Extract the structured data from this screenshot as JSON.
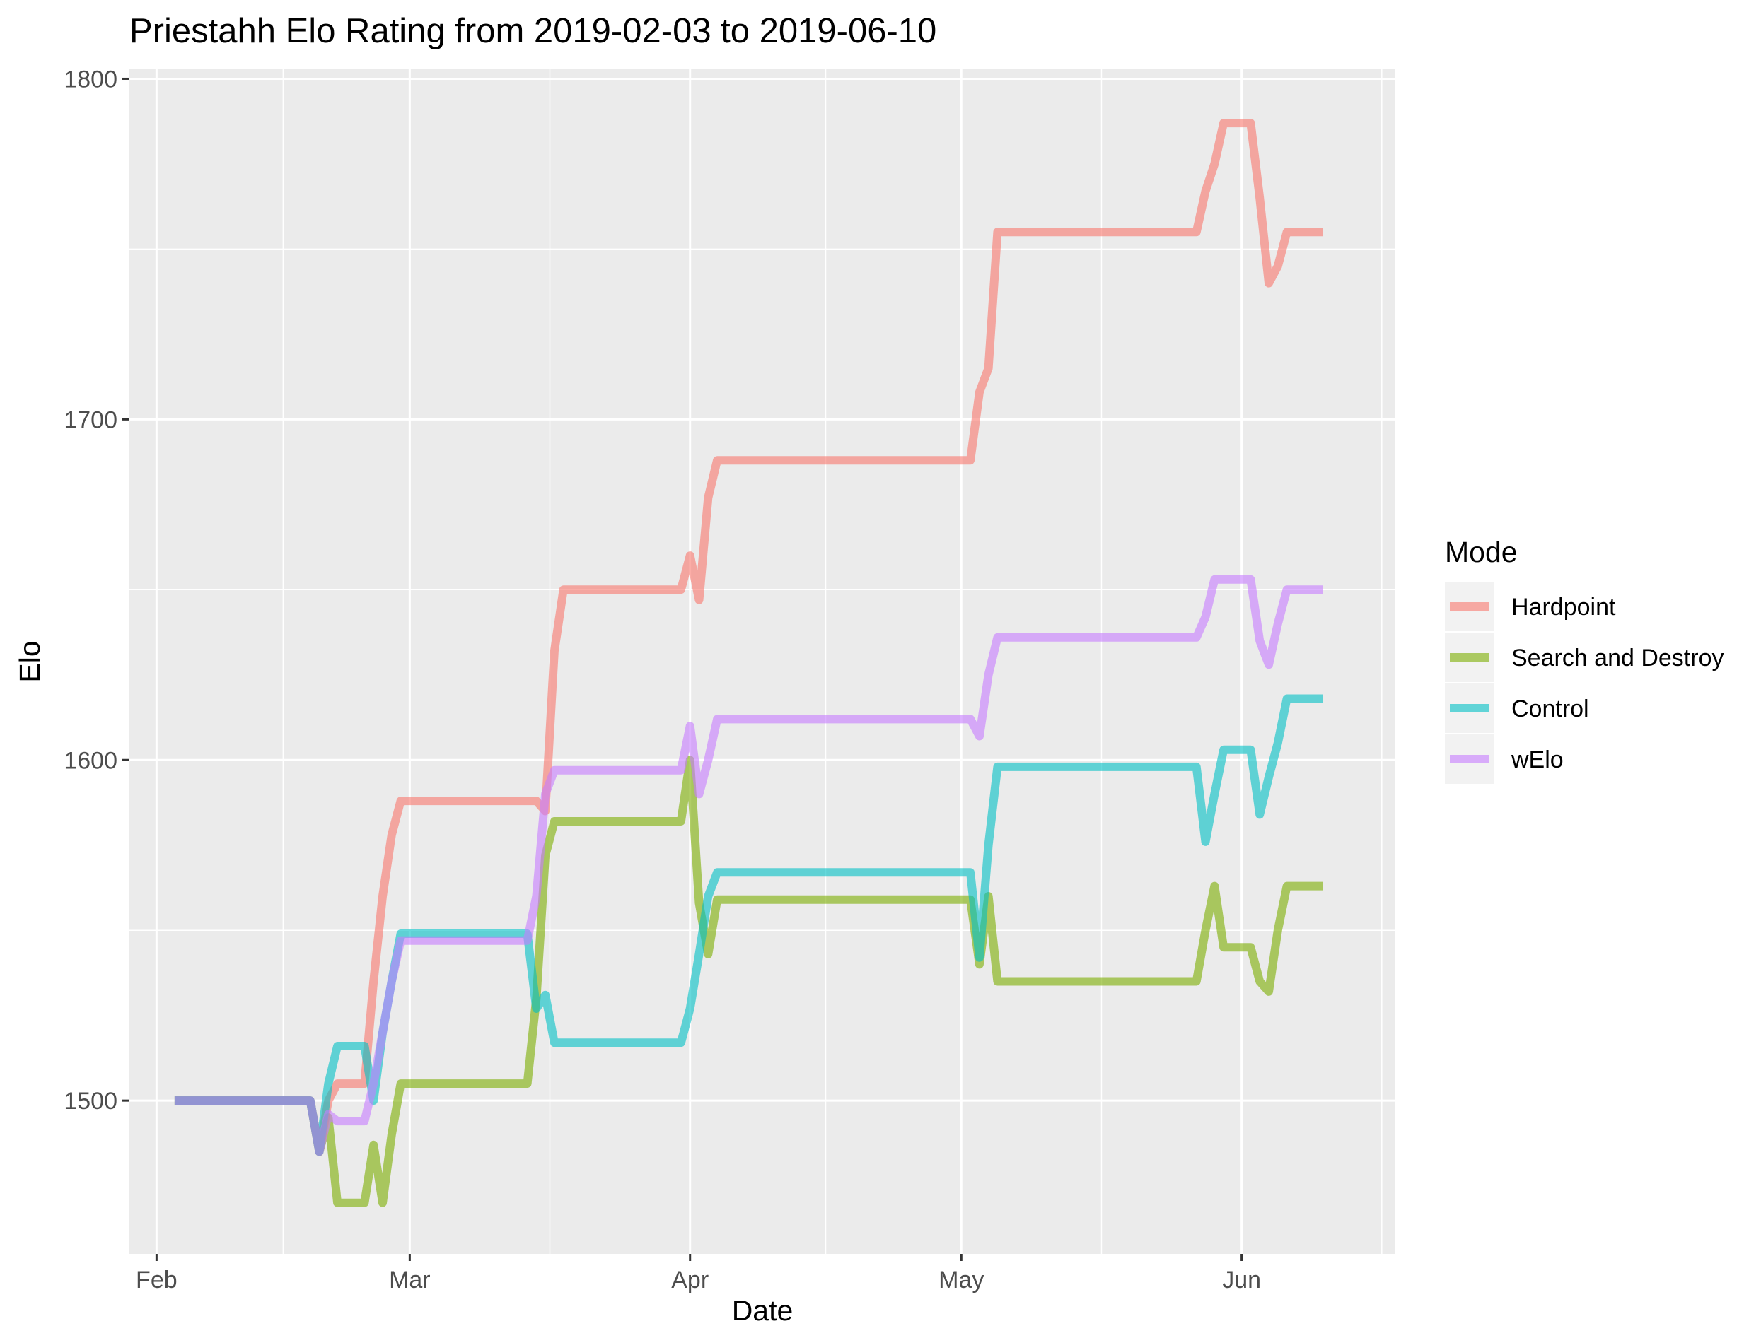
{
  "chart_data": {
    "type": "line",
    "title": "Priestahh Elo Rating from 2019-02-03 to 2019-06-10",
    "xlabel": "Date",
    "ylabel": "Elo",
    "xlim": [
      "2019-01-29",
      "2019-06-18"
    ],
    "ylim": [
      1455,
      1803
    ],
    "x_ticks": [
      {
        "date": "2019-02-01",
        "label": "Feb"
      },
      {
        "date": "2019-03-01",
        "label": "Mar"
      },
      {
        "date": "2019-04-01",
        "label": "Apr"
      },
      {
        "date": "2019-05-01",
        "label": "May"
      },
      {
        "date": "2019-06-01",
        "label": "Jun"
      }
    ],
    "y_ticks": [
      1500,
      1600,
      1700,
      1800
    ],
    "grid": true,
    "legend": {
      "title": "Mode",
      "position": "right"
    },
    "series": [
      {
        "name": "Hardpoint",
        "color": "#F8766D",
        "points": [
          [
            "2019-02-03",
            1500
          ],
          [
            "2019-02-18",
            1500
          ],
          [
            "2019-02-19",
            1485
          ],
          [
            "2019-02-20",
            1500
          ],
          [
            "2019-02-21",
            1505
          ],
          [
            "2019-02-24",
            1505
          ],
          [
            "2019-02-25",
            1535
          ],
          [
            "2019-02-26",
            1560
          ],
          [
            "2019-02-27",
            1578
          ],
          [
            "2019-02-28",
            1588
          ],
          [
            "2019-03-15",
            1588
          ],
          [
            "2019-03-16",
            1585
          ],
          [
            "2019-03-17",
            1632
          ],
          [
            "2019-03-18",
            1650
          ],
          [
            "2019-03-31",
            1650
          ],
          [
            "2019-04-01",
            1660
          ],
          [
            "2019-04-02",
            1647
          ],
          [
            "2019-04-03",
            1677
          ],
          [
            "2019-04-04",
            1688
          ],
          [
            "2019-05-02",
            1688
          ],
          [
            "2019-05-03",
            1708
          ],
          [
            "2019-05-04",
            1715
          ],
          [
            "2019-05-05",
            1755
          ],
          [
            "2019-05-27",
            1755
          ],
          [
            "2019-05-28",
            1767
          ],
          [
            "2019-05-29",
            1775
          ],
          [
            "2019-05-30",
            1787
          ],
          [
            "2019-06-02",
            1787
          ],
          [
            "2019-06-03",
            1765
          ],
          [
            "2019-06-04",
            1740
          ],
          [
            "2019-06-05",
            1745
          ],
          [
            "2019-06-06",
            1755
          ],
          [
            "2019-06-10",
            1755
          ]
        ]
      },
      {
        "name": "Search and Destroy",
        "color": "#7CAE00",
        "points": [
          [
            "2019-02-03",
            1500
          ],
          [
            "2019-02-18",
            1500
          ],
          [
            "2019-02-19",
            1485
          ],
          [
            "2019-02-20",
            1495
          ],
          [
            "2019-02-21",
            1470
          ],
          [
            "2019-02-24",
            1470
          ],
          [
            "2019-02-25",
            1487
          ],
          [
            "2019-02-26",
            1470
          ],
          [
            "2019-02-27",
            1490
          ],
          [
            "2019-02-28",
            1505
          ],
          [
            "2019-03-14",
            1505
          ],
          [
            "2019-03-15",
            1530
          ],
          [
            "2019-03-16",
            1572
          ],
          [
            "2019-03-17",
            1582
          ],
          [
            "2019-03-31",
            1582
          ],
          [
            "2019-04-01",
            1600
          ],
          [
            "2019-04-02",
            1558
          ],
          [
            "2019-04-03",
            1543
          ],
          [
            "2019-04-04",
            1559
          ],
          [
            "2019-05-02",
            1559
          ],
          [
            "2019-05-03",
            1540
          ],
          [
            "2019-05-04",
            1560
          ],
          [
            "2019-05-05",
            1535
          ],
          [
            "2019-05-27",
            1535
          ],
          [
            "2019-05-28",
            1550
          ],
          [
            "2019-05-29",
            1563
          ],
          [
            "2019-05-30",
            1545
          ],
          [
            "2019-06-02",
            1545
          ],
          [
            "2019-06-03",
            1535
          ],
          [
            "2019-06-04",
            1532
          ],
          [
            "2019-06-05",
            1550
          ],
          [
            "2019-06-06",
            1563
          ],
          [
            "2019-06-10",
            1563
          ]
        ]
      },
      {
        "name": "Control",
        "color": "#00BFC4",
        "points": [
          [
            "2019-02-03",
            1500
          ],
          [
            "2019-02-18",
            1500
          ],
          [
            "2019-02-19",
            1485
          ],
          [
            "2019-02-20",
            1505
          ],
          [
            "2019-02-21",
            1516
          ],
          [
            "2019-02-24",
            1516
          ],
          [
            "2019-02-25",
            1500
          ],
          [
            "2019-02-26",
            1520
          ],
          [
            "2019-02-27",
            1535
          ],
          [
            "2019-02-28",
            1549
          ],
          [
            "2019-03-14",
            1549
          ],
          [
            "2019-03-15",
            1527
          ],
          [
            "2019-03-16",
            1531
          ],
          [
            "2019-03-17",
            1517
          ],
          [
            "2019-03-31",
            1517
          ],
          [
            "2019-04-01",
            1527
          ],
          [
            "2019-04-02",
            1543
          ],
          [
            "2019-04-03",
            1560
          ],
          [
            "2019-04-04",
            1567
          ],
          [
            "2019-05-02",
            1567
          ],
          [
            "2019-05-03",
            1542
          ],
          [
            "2019-05-04",
            1575
          ],
          [
            "2019-05-05",
            1598
          ],
          [
            "2019-05-27",
            1598
          ],
          [
            "2019-05-28",
            1576
          ],
          [
            "2019-05-29",
            1590
          ],
          [
            "2019-05-30",
            1603
          ],
          [
            "2019-06-02",
            1603
          ],
          [
            "2019-06-03",
            1584
          ],
          [
            "2019-06-04",
            1595
          ],
          [
            "2019-06-05",
            1605
          ],
          [
            "2019-06-06",
            1618
          ],
          [
            "2019-06-10",
            1618
          ]
        ]
      },
      {
        "name": "wElo",
        "color": "#C77CFF",
        "points": [
          [
            "2019-02-03",
            1500
          ],
          [
            "2019-02-18",
            1500
          ],
          [
            "2019-02-19",
            1485
          ],
          [
            "2019-02-20",
            1496
          ],
          [
            "2019-02-21",
            1494
          ],
          [
            "2019-02-24",
            1494
          ],
          [
            "2019-02-25",
            1505
          ],
          [
            "2019-02-26",
            1520
          ],
          [
            "2019-02-27",
            1535
          ],
          [
            "2019-02-28",
            1547
          ],
          [
            "2019-03-14",
            1547
          ],
          [
            "2019-03-15",
            1560
          ],
          [
            "2019-03-16",
            1590
          ],
          [
            "2019-03-17",
            1597
          ],
          [
            "2019-03-31",
            1597
          ],
          [
            "2019-04-01",
            1610
          ],
          [
            "2019-04-02",
            1590
          ],
          [
            "2019-04-03",
            1600
          ],
          [
            "2019-04-04",
            1612
          ],
          [
            "2019-05-02",
            1612
          ],
          [
            "2019-05-03",
            1607
          ],
          [
            "2019-05-04",
            1625
          ],
          [
            "2019-05-05",
            1636
          ],
          [
            "2019-05-27",
            1636
          ],
          [
            "2019-05-28",
            1642
          ],
          [
            "2019-05-29",
            1653
          ],
          [
            "2019-06-02",
            1653
          ],
          [
            "2019-06-03",
            1635
          ],
          [
            "2019-06-04",
            1628
          ],
          [
            "2019-06-05",
            1640
          ],
          [
            "2019-06-06",
            1650
          ],
          [
            "2019-06-10",
            1650
          ]
        ]
      }
    ]
  }
}
